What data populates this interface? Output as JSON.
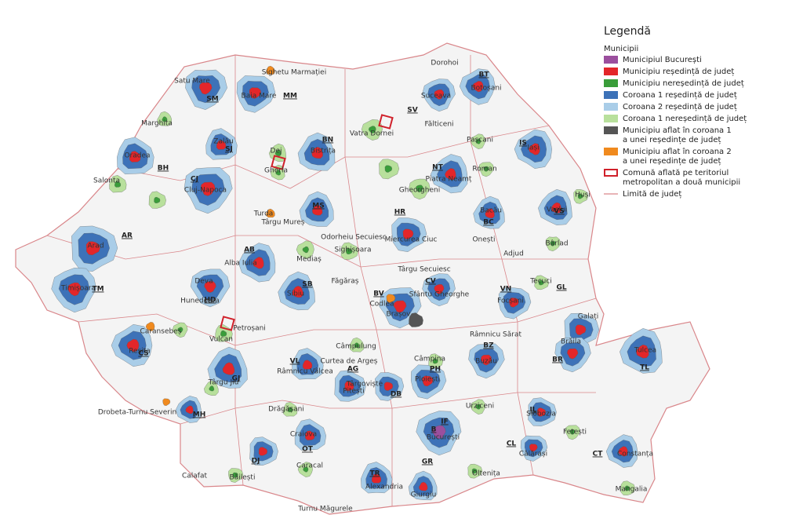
{
  "legend": {
    "title": "Legendă",
    "subtitle": "Municipii",
    "items": [
      {
        "label": [
          "Municipiul București"
        ],
        "color": "#9b4f9e",
        "kind": "fill"
      },
      {
        "label": [
          "Municipiu reședință de județ"
        ],
        "color": "#e3262a",
        "kind": "fill"
      },
      {
        "label": [
          "Municipiu nereședință de județ"
        ],
        "color": "#3a9d3a",
        "kind": "fill"
      },
      {
        "label": [
          "Coroana 1 reședință de județ"
        ],
        "color": "#3d72b8",
        "kind": "fill"
      },
      {
        "label": [
          "Coroana 2 reședință de județ"
        ],
        "color": "#a9cde8",
        "kind": "fill"
      },
      {
        "label": [
          "Coroana 1 nereședință de județ"
        ],
        "color": "#b8e09c",
        "kind": "fill"
      },
      {
        "label": [
          "Municipiu aflat în coroana 1",
          "a unei reședințe de județ"
        ],
        "color": "#555555",
        "kind": "fill"
      },
      {
        "label": [
          "Municipiu aflat în coroana 2",
          "a unei reședințe de județ"
        ],
        "color": "#f08a1e",
        "kind": "fill"
      },
      {
        "label": [
          "Comună aflată pe teritoriul",
          "metropolitan a două municipii"
        ],
        "color": "#d0202a",
        "kind": "outline"
      },
      {
        "label": [
          "Limită de județ"
        ],
        "color": "#d9868a",
        "kind": "line"
      }
    ]
  },
  "cities": [
    "Satu Mare",
    "Baia Mare",
    "Sighetu Marmației",
    "Oradea",
    "Salonta",
    "Marghita",
    "Cluj-Napoca",
    "Dej",
    "Gherla",
    "Bistrița",
    "Zalău",
    "Turda",
    "Târgu Mureș",
    "Alba Iulia",
    "Arad",
    "Timișoara",
    "Deva",
    "Hunedoara",
    "Petroșani",
    "Vulcan",
    "Caransebeș",
    "Reșița",
    "Drobeta-Turnu Severin",
    "Târgu Jiu",
    "Sibiu",
    "Mediaș",
    "Sighișoara",
    "Odorheiu Secuiesc",
    "Miercurea Ciuc",
    "Brașov",
    "Făgăraș",
    "Codlea",
    "Sfântu Gheorghe",
    "Târgu Secuiesc",
    "Suceava",
    "Botoșani",
    "Dorohoi",
    "Fălticeni",
    "Vatra Dornei",
    "Gheorgheni",
    "Piatra Neamț",
    "Roman",
    "Iași",
    "Pașcani",
    "Bacău",
    "Onești",
    "Vaslui",
    "Huși",
    "Bârlad",
    "Adjud",
    "Tecuci",
    "Focșani",
    "Galați",
    "Brăila",
    "Tulcea",
    "Buzău",
    "Râmnicu Sărat",
    "Ploiești",
    "Câmpina",
    "Târgoviște",
    "Câmpulung",
    "Pitești",
    "Curtea de Argeș",
    "Râmnicu Vâlcea",
    "Drăgășani",
    "Craiova",
    "Caracal",
    "Calafat",
    "Băilești",
    "Alexandria",
    "Turnu Măgurele",
    "Giurgiu",
    "Oltenița",
    "București",
    "Slobozia",
    "Urziceni",
    "Călărași",
    "Fetești",
    "Constanța",
    "Mangalia"
  ],
  "counties": [
    "SM",
    "MM",
    "BH",
    "SJ",
    "BN",
    "CJ",
    "MS",
    "AR",
    "TM",
    "AB",
    "HD",
    "SB",
    "CS",
    "MH",
    "GJ",
    "VL",
    "AG",
    "DB",
    "PH",
    "BV",
    "CV",
    "HR",
    "SV",
    "BT",
    "NT",
    "IS",
    "BC",
    "VS",
    "VN",
    "GL",
    "BR",
    "TL",
    "BZ",
    "IL",
    "CL",
    "CT",
    "B",
    "IF",
    "GR",
    "TR",
    "OT",
    "DJ"
  ]
}
